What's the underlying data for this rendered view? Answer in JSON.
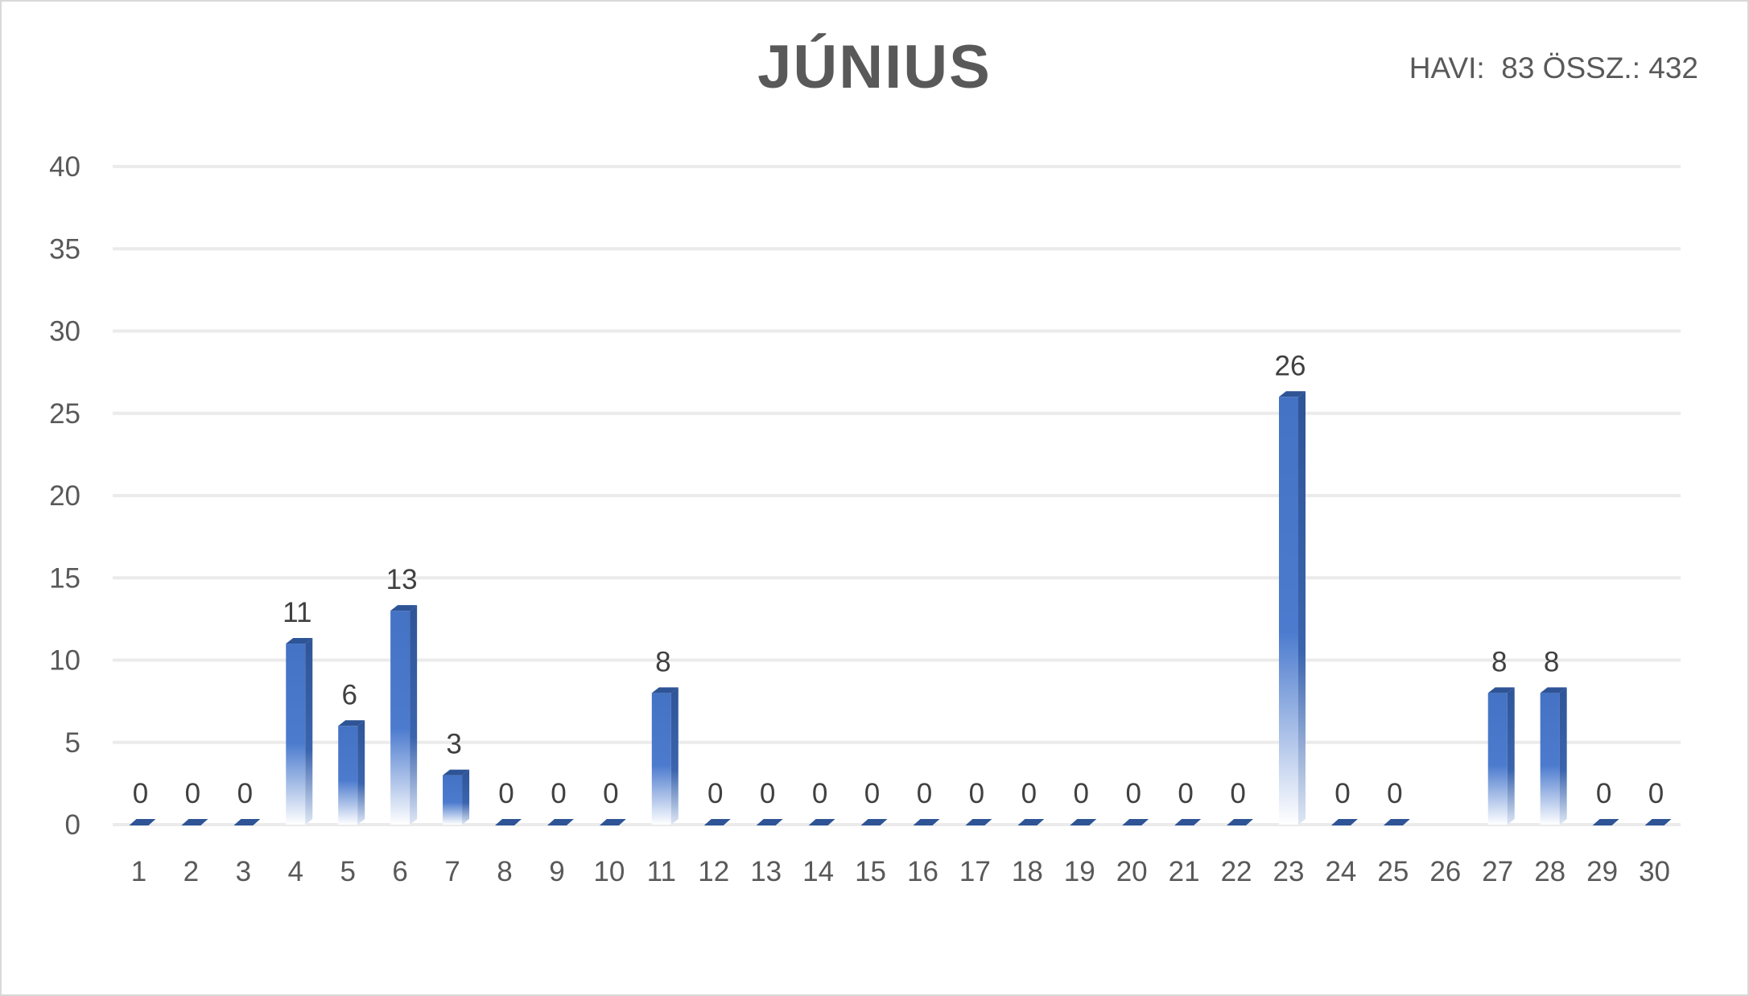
{
  "chart_data": {
    "type": "bar",
    "title": "JÚNIUS",
    "annotation": "HAVI:  83 ÖSSZ.: 432",
    "xlabel": "",
    "ylabel": "",
    "categories": [
      "1",
      "2",
      "3",
      "4",
      "5",
      "6",
      "7",
      "8",
      "9",
      "10",
      "11",
      "12",
      "13",
      "14",
      "15",
      "16",
      "17",
      "18",
      "19",
      "20",
      "21",
      "22",
      "23",
      "24",
      "25",
      "26",
      "27",
      "28",
      "29",
      "30"
    ],
    "values": [
      0,
      0,
      0,
      11,
      6,
      13,
      3,
      0,
      0,
      0,
      8,
      0,
      0,
      0,
      0,
      0,
      0,
      0,
      0,
      0,
      0,
      0,
      26,
      0,
      0,
      null,
      8,
      8,
      0,
      0
    ],
    "ylim": [
      0,
      40
    ],
    "yticks": [
      0,
      5,
      10,
      15,
      20,
      25,
      30,
      35,
      40
    ],
    "grid": true,
    "legend": "none",
    "colors": {
      "bar_front": "#4472c4",
      "bar_side": "#2f5597",
      "bar_top": "#2e5496",
      "grid": "#ebebeb",
      "text": "#595959"
    }
  }
}
